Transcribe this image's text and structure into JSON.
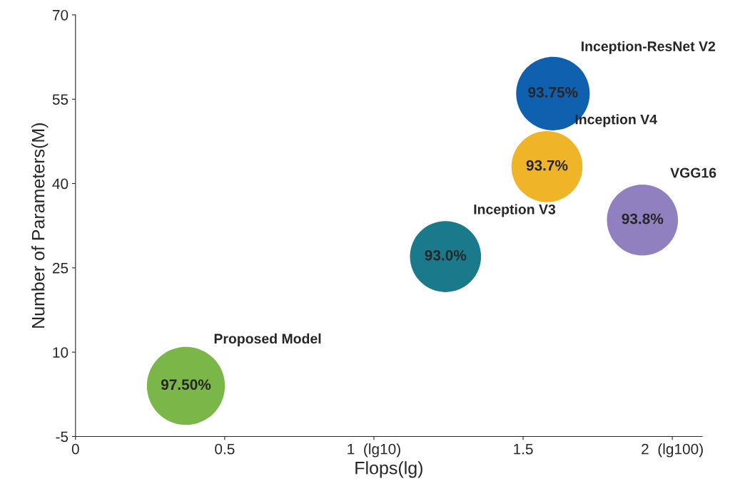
{
  "chart_data": {
    "type": "bubble",
    "xlabel": "Flops(lg)",
    "ylabel": "Number of Parameters(M)",
    "xlim": [
      0,
      2.1
    ],
    "ylim": [
      -5,
      70
    ],
    "xticks": [
      0,
      0.5,
      {
        "value": 1,
        "label": "1  (lg10)"
      },
      1.5,
      {
        "value": 2,
        "label": "2  (lg100)"
      }
    ],
    "yticks": [
      -5,
      10,
      25,
      40,
      55,
      70
    ],
    "grid": false,
    "legend": false,
    "annotations": [
      {
        "text": "97.50%",
        "x": 0.37,
        "y": 4
      },
      {
        "text": "93.0%",
        "x": 1.24,
        "y": 27
      },
      {
        "text": "93.7%",
        "x": 1.58,
        "y": 43
      },
      {
        "text": "93.75%",
        "x": 1.6,
        "y": 56
      },
      {
        "text": "93.8%",
        "x": 1.9,
        "y": 33.5
      }
    ],
    "series": [
      {
        "name": "Proposed Model",
        "color": "#7ab648",
        "x": [
          0.37
        ],
        "values": [
          4
        ],
        "sizes": [
          1
        ]
      },
      {
        "name": "Inception V3",
        "color": "#1a7a8c",
        "x": [
          1.24
        ],
        "values": [
          27
        ],
        "sizes": [
          0.83
        ]
      },
      {
        "name": "Inception V4",
        "color": "#f0b429",
        "x": [
          1.58
        ],
        "values": [
          43
        ],
        "sizes": [
          0.83
        ]
      },
      {
        "name": "Inception-ResNet V2",
        "color": "#1060b0",
        "x": [
          1.6
        ],
        "values": [
          56
        ],
        "sizes": [
          0.89
        ]
      },
      {
        "name": "VGG16",
        "color": "#9080c0",
        "x": [
          1.9
        ],
        "values": [
          33.5
        ],
        "sizes": [
          0.83
        ]
      }
    ]
  }
}
